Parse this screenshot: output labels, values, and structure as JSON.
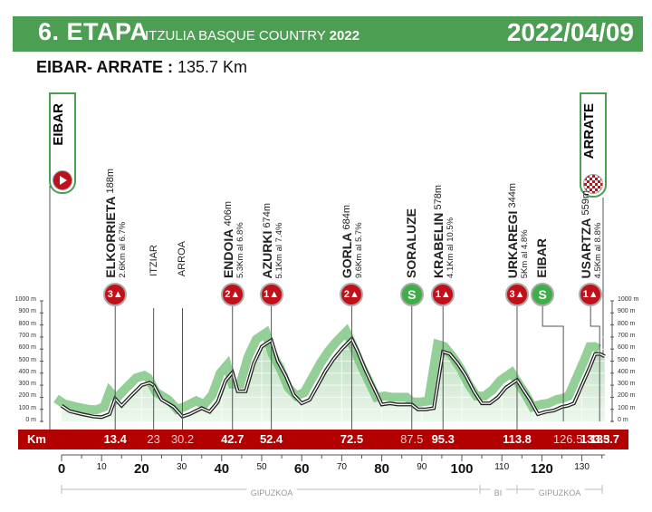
{
  "header": {
    "stage": "6. ETAPA",
    "race": "ITZULIA BASQUE COUNTRY",
    "year": "2022",
    "date": "2022/04/09",
    "color": "#4c9e52"
  },
  "route": {
    "title": "EIBAR- ARRATE",
    "separator": " : ",
    "distance": "135.7 Km"
  },
  "endpoints": {
    "start": {
      "name": "EIBAR",
      "icon": "start-play-icon"
    },
    "finish": {
      "name": "ARRATE",
      "icon": "finish-checkered-flag-icon"
    }
  },
  "points": [
    {
      "name": "ELKORRIETA",
      "alt": "188m",
      "detail": "2.6Km al 6.7%",
      "type": "climb",
      "cat": "3",
      "km": 13.4
    },
    {
      "name": "ITZIAR",
      "type": "town",
      "km": 23
    },
    {
      "name": "ARROA",
      "type": "town",
      "km": 30.2
    },
    {
      "name": "ENDOIA",
      "alt": "406m",
      "detail": "5.3Km al 6.8%",
      "type": "climb",
      "cat": "2",
      "km": 42.7
    },
    {
      "name": "AZURKI",
      "alt": "674m",
      "detail": "5.1Km al 7.4%",
      "type": "climb",
      "cat": "1",
      "km": 52.4
    },
    {
      "name": "GORLA",
      "alt": "684m",
      "detail": "9.6Km al 5.7%",
      "type": "climb",
      "cat": "2",
      "km": 72.5
    },
    {
      "name": "SORALUZE",
      "type": "sprint",
      "km": 87.5
    },
    {
      "name": "KRABELIN",
      "alt": "578m",
      "detail": "4.1Km al 10.5%",
      "type": "climb",
      "cat": "1",
      "km": 95.3
    },
    {
      "name": "URKAREGI",
      "alt": "344m",
      "detail": "5Km al 4.8%",
      "type": "climb",
      "cat": "3",
      "km": 113.8
    },
    {
      "name": "EIBAR",
      "type": "sprint",
      "km": 126.5
    },
    {
      "name": "USARTZA",
      "alt": "559m",
      "detail": "4.5Km al 8.8%",
      "type": "climb",
      "cat": "1",
      "km": 133.3
    }
  ],
  "km_bar": {
    "label": "Km",
    "marks": [
      "13.4",
      "23",
      "30.2",
      "42.7",
      "52.4",
      "72.5",
      "87.5",
      "95.3",
      "113.8",
      "126.5",
      "133.3",
      "135.7"
    ],
    "color": "#b30000"
  },
  "regions": [
    "GIPUZKOA",
    "BI",
    "GIPUZKOA"
  ],
  "chart_data": {
    "type": "area",
    "title": "6. ETAPA ITZULIA BASQUE COUNTRY 2022 — EIBAR- ARRATE : 135.7 Km",
    "xlabel": "Km",
    "ylabel": "m",
    "xlim": [
      0,
      135.7
    ],
    "ylim": [
      0,
      1000
    ],
    "x_ticks": [
      "0",
      "10",
      "20",
      "30",
      "40",
      "50",
      "60",
      "70",
      "80",
      "90",
      "100",
      "110",
      "120",
      "130"
    ],
    "y_ticks": [
      "0 m",
      "100 m",
      "200 m",
      "300 m",
      "400 m",
      "500 m",
      "600 m",
      "700 m",
      "800 m",
      "900 m",
      "1000 m"
    ],
    "grid": true,
    "x": [
      0,
      2,
      5,
      8,
      10,
      12,
      13.4,
      15,
      17,
      20,
      22,
      23,
      25,
      28,
      30.2,
      32,
      35,
      37,
      39,
      41,
      42.7,
      44,
      46,
      48,
      50,
      52.4,
      54,
      56,
      58,
      60,
      62,
      64,
      66,
      68,
      70,
      72.5,
      74,
      76,
      78,
      80,
      82,
      84,
      86,
      87.5,
      89,
      91,
      93,
      95.3,
      97,
      99,
      101,
      103,
      105,
      107,
      109,
      111,
      113.8,
      115,
      117,
      119,
      121,
      123,
      125,
      126.5,
      128,
      130,
      132,
      133.3,
      134.5,
      135.7
    ],
    "values": [
      130,
      85,
      60,
      40,
      35,
      60,
      188,
      130,
      200,
      300,
      320,
      300,
      180,
      120,
      40,
      60,
      110,
      80,
      160,
      340,
      406,
      250,
      250,
      480,
      620,
      674,
      500,
      380,
      220,
      150,
      180,
      300,
      420,
      520,
      600,
      684,
      580,
      420,
      280,
      140,
      150,
      140,
      140,
      140,
      100,
      100,
      110,
      578,
      560,
      480,
      380,
      250,
      150,
      150,
      200,
      280,
      344,
      280,
      180,
      60,
      80,
      90,
      120,
      130,
      150,
      300,
      450,
      559,
      560,
      540
    ],
    "annotations": [
      {
        "km": 13.4,
        "label": "ELKORRIETA 188m (3)"
      },
      {
        "km": 42.7,
        "label": "ENDOIA 406m (2)"
      },
      {
        "km": 52.4,
        "label": "AZURKI 674m (1)"
      },
      {
        "km": 72.5,
        "label": "GORLA 684m (2)"
      },
      {
        "km": 87.5,
        "label": "SORALUZE (S)"
      },
      {
        "km": 95.3,
        "label": "KRABELIN 578m (1)"
      },
      {
        "km": 113.8,
        "label": "URKAREGI 344m (3)"
      },
      {
        "km": 126.5,
        "label": "EIBAR (S)"
      },
      {
        "km": 133.3,
        "label": "USARTZA 559m (1)"
      }
    ],
    "legend": null
  }
}
